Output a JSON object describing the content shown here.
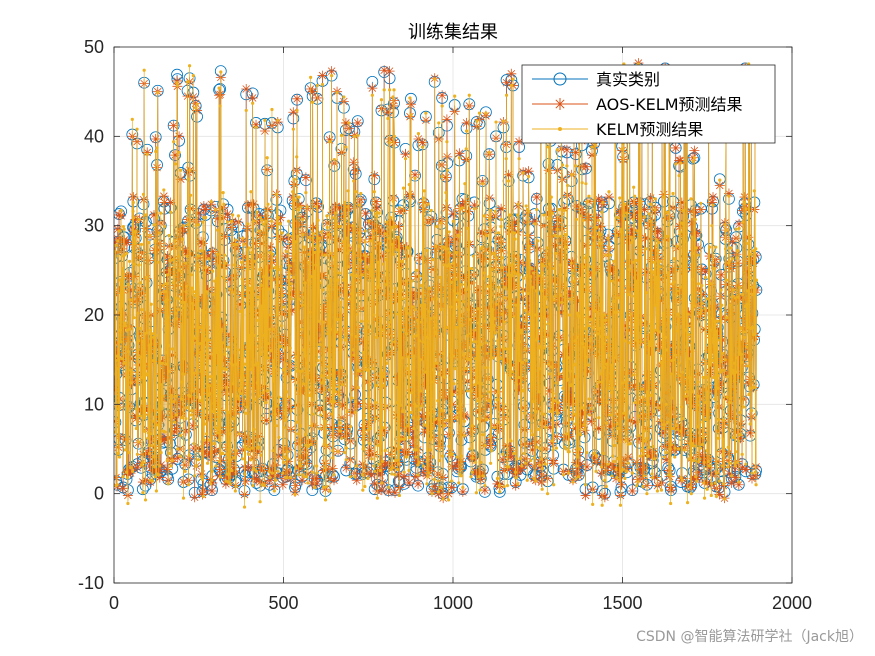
{
  "chart_data": {
    "type": "line",
    "title": "训练集结果",
    "xlabel": "",
    "ylabel": "",
    "xlim": [
      0,
      2000
    ],
    "ylim": [
      -10,
      50
    ],
    "xticks": [
      0,
      500,
      1000,
      1500,
      2000
    ],
    "yticks": [
      -10,
      0,
      10,
      20,
      30,
      40,
      50
    ],
    "grid": true,
    "legend_position": "top-right",
    "n_points": 1895,
    "series": [
      {
        "name": "真实类别",
        "color": "#0072BD",
        "marker": "circle",
        "line": "solid"
      },
      {
        "name": "AOS-KELM预测结果",
        "color": "#D95319",
        "marker": "asterisk",
        "line": "solid"
      },
      {
        "name": "KELM预测结果",
        "color": "#EDB120",
        "marker": "point",
        "line": "solid"
      }
    ]
  },
  "watermark": "CSDN @智能算法研学社（Jack旭）"
}
